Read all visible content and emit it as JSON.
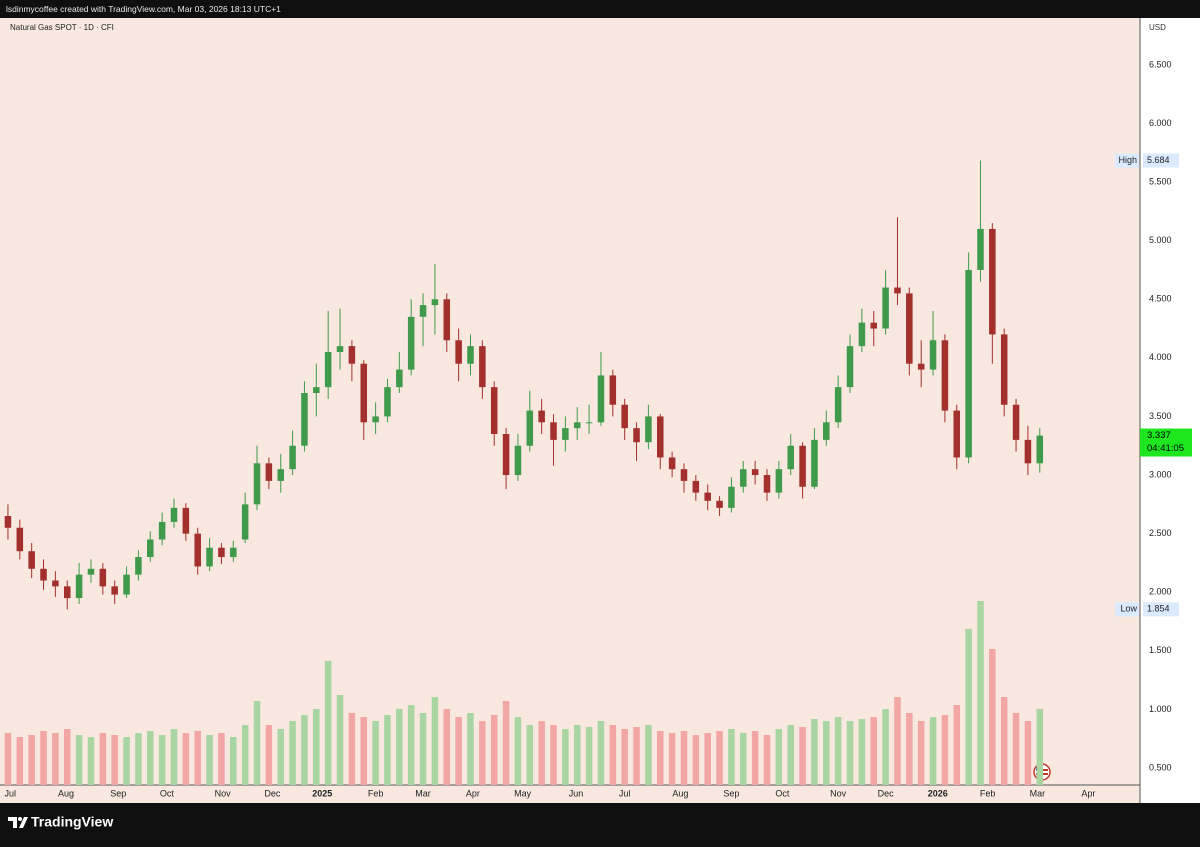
{
  "header": {
    "text": "lsdinmycoffee created with TradingView.com, Mar 03, 2026 18:13 UTC+1"
  },
  "footer": {
    "brand": "TradingView"
  },
  "chart_data": {
    "type": "candlestick",
    "title": "Natural Gas SPOT · 1D · CFI",
    "currency": "USD",
    "open": [
      2.65,
      2.55,
      2.35,
      2.2,
      2.1,
      2.05,
      1.95,
      2.15,
      2.2,
      2.05,
      1.98,
      2.15,
      2.3,
      2.45,
      2.6,
      2.72,
      2.5,
      2.22,
      2.38,
      2.3,
      2.45,
      2.75,
      3.1,
      2.95,
      3.05,
      3.25,
      3.7,
      3.75,
      4.05,
      4.1,
      3.95,
      3.45,
      3.5,
      3.75,
      3.9,
      4.35,
      4.45,
      4.5,
      4.15,
      3.95,
      4.1,
      3.75,
      3.35,
      3.0,
      3.25,
      3.55,
      3.45,
      3.3,
      3.4,
      3.45,
      3.45,
      3.85,
      3.6,
      3.4,
      3.28,
      3.5,
      3.15,
      3.05,
      2.95,
      2.85,
      2.78,
      2.72,
      2.9,
      3.05,
      3.0,
      2.85,
      3.05,
      3.25,
      2.9,
      3.3,
      3.45,
      3.75,
      4.1,
      4.3,
      4.25,
      4.6,
      4.55,
      3.95,
      3.9,
      4.15,
      3.55,
      3.15,
      4.75,
      5.1,
      4.2,
      3.6,
      3.3,
      3.1
    ],
    "high": [
      2.75,
      2.62,
      2.42,
      2.28,
      2.18,
      2.1,
      2.25,
      2.28,
      2.25,
      2.1,
      2.22,
      2.36,
      2.52,
      2.68,
      2.8,
      2.76,
      2.55,
      2.46,
      2.42,
      2.44,
      2.85,
      3.25,
      3.15,
      3.18,
      3.38,
      3.8,
      3.95,
      4.4,
      4.42,
      4.15,
      3.98,
      3.62,
      3.82,
      4.05,
      4.5,
      4.55,
      4.8,
      4.55,
      4.25,
      4.2,
      4.15,
      3.8,
      3.4,
      3.35,
      3.72,
      3.65,
      3.52,
      3.5,
      3.58,
      3.6,
      4.05,
      3.9,
      3.65,
      3.45,
      3.6,
      3.52,
      3.2,
      3.1,
      3.0,
      2.92,
      2.82,
      2.98,
      3.12,
      3.12,
      3.05,
      3.12,
      3.35,
      3.28,
      3.4,
      3.55,
      3.85,
      4.2,
      4.42,
      4.4,
      4.75,
      5.2,
      4.6,
      4.15,
      4.4,
      4.2,
      3.6,
      4.9,
      5.684,
      5.15,
      4.25,
      3.65,
      3.42,
      3.4
    ],
    "low": [
      2.45,
      2.28,
      2.12,
      2.02,
      1.96,
      1.854,
      1.9,
      2.08,
      1.98,
      1.9,
      1.95,
      2.1,
      2.26,
      2.4,
      2.55,
      2.44,
      2.15,
      2.18,
      2.24,
      2.26,
      2.42,
      2.7,
      2.88,
      2.85,
      3.0,
      3.2,
      3.5,
      3.65,
      3.9,
      3.8,
      3.3,
      3.35,
      3.45,
      3.7,
      3.85,
      4.1,
      4.2,
      4.05,
      3.8,
      3.85,
      3.65,
      3.25,
      2.88,
      2.95,
      3.2,
      3.35,
      3.08,
      3.2,
      3.3,
      3.35,
      3.42,
      3.5,
      3.3,
      3.12,
      3.22,
      3.05,
      2.98,
      2.85,
      2.78,
      2.7,
      2.65,
      2.68,
      2.85,
      2.92,
      2.78,
      2.8,
      3.0,
      2.8,
      2.88,
      3.25,
      3.4,
      3.7,
      4.05,
      4.1,
      4.2,
      4.45,
      3.85,
      3.75,
      3.85,
      3.45,
      3.05,
      3.1,
      4.65,
      3.95,
      3.5,
      3.2,
      3.0,
      3.02
    ],
    "close": [
      2.55,
      2.35,
      2.2,
      2.1,
      2.05,
      1.95,
      2.15,
      2.2,
      2.05,
      1.98,
      2.15,
      2.3,
      2.45,
      2.6,
      2.72,
      2.5,
      2.22,
      2.38,
      2.3,
      2.38,
      2.75,
      3.1,
      2.95,
      3.05,
      3.25,
      3.7,
      3.75,
      4.05,
      4.1,
      3.95,
      3.45,
      3.5,
      3.75,
      3.9,
      4.35,
      4.45,
      4.5,
      4.15,
      3.95,
      4.1,
      3.75,
      3.35,
      3.0,
      3.25,
      3.55,
      3.45,
      3.3,
      3.4,
      3.45,
      3.45,
      3.85,
      3.6,
      3.4,
      3.28,
      3.5,
      3.15,
      3.05,
      2.95,
      2.85,
      2.78,
      2.72,
      2.9,
      3.05,
      3.0,
      2.85,
      3.05,
      3.25,
      2.9,
      3.3,
      3.45,
      3.75,
      4.1,
      4.3,
      4.25,
      4.6,
      4.55,
      3.95,
      3.9,
      4.15,
      3.55,
      3.15,
      4.75,
      5.1,
      4.2,
      3.6,
      3.3,
      3.1,
      3.337
    ],
    "volume": [
      26,
      24,
      25,
      27,
      26,
      28,
      25,
      24,
      26,
      25,
      24,
      26,
      27,
      25,
      28,
      26,
      27,
      25,
      26,
      24,
      30,
      42,
      30,
      28,
      32,
      35,
      38,
      62,
      45,
      36,
      34,
      32,
      35,
      38,
      40,
      36,
      44,
      38,
      34,
      36,
      32,
      35,
      42,
      34,
      30,
      32,
      30,
      28,
      30,
      29,
      32,
      30,
      28,
      29,
      30,
      27,
      26,
      27,
      25,
      26,
      27,
      28,
      26,
      27,
      25,
      28,
      30,
      29,
      33,
      32,
      34,
      32,
      33,
      34,
      38,
      44,
      36,
      32,
      34,
      35,
      40,
      78,
      92,
      68,
      44,
      36,
      32,
      38
    ],
    "volume_lim": [
      0,
      100
    ],
    "ylim": [
      0.355,
      6.9
    ],
    "yticks": [
      {
        "value": 0.5,
        "label": "0.500"
      },
      {
        "value": 1,
        "label": "1.000"
      },
      {
        "value": 1.5,
        "label": "1.500"
      },
      {
        "value": 2,
        "label": "2.000"
      },
      {
        "value": 2.5,
        "label": "2.500"
      },
      {
        "value": 3,
        "label": "3.000"
      },
      {
        "value": 3.5,
        "label": "3.500"
      },
      {
        "value": 4,
        "label": "4.000"
      },
      {
        "value": 4.5,
        "label": "4.500"
      },
      {
        "value": 5,
        "label": "5.000"
      },
      {
        "value": 5.5,
        "label": "5.500"
      },
      {
        "value": 6,
        "label": "6.000"
      },
      {
        "value": 6.5,
        "label": "6.500"
      }
    ],
    "xlim": [
      -0.67,
      95.45
    ],
    "xticks": [
      {
        "value": 0.2,
        "label": "Jul"
      },
      {
        "value": 4.9,
        "label": "Aug"
      },
      {
        "value": 9.3,
        "label": "Sep"
      },
      {
        "value": 13.4,
        "label": "Oct"
      },
      {
        "value": 18.1,
        "label": "Nov"
      },
      {
        "value": 22.3,
        "label": "Dec"
      },
      {
        "value": 26.5,
        "label": "2025"
      },
      {
        "value": 31.0,
        "label": "Feb"
      },
      {
        "value": 35.0,
        "label": "Mar"
      },
      {
        "value": 39.2,
        "label": "Apr"
      },
      {
        "value": 43.4,
        "label": "May"
      },
      {
        "value": 47.9,
        "label": "Jun"
      },
      {
        "value": 52.0,
        "label": "Jul"
      },
      {
        "value": 56.7,
        "label": "Aug"
      },
      {
        "value": 61.0,
        "label": "Sep"
      },
      {
        "value": 65.3,
        "label": "Oct"
      },
      {
        "value": 70.0,
        "label": "Nov"
      },
      {
        "value": 74.0,
        "label": "Dec"
      },
      {
        "value": 78.4,
        "label": "2026"
      },
      {
        "value": 82.6,
        "label": "Feb"
      },
      {
        "value": 86.8,
        "label": "Mar"
      },
      {
        "value": 91.1,
        "label": "Apr"
      }
    ],
    "high_marker": {
      "label": "High",
      "value": 5.684
    },
    "low_marker": {
      "label": "Low",
      "value": 1.854
    },
    "last_price": {
      "value": 3.337,
      "countdown": "04:41:05"
    },
    "up_color": "#3f9a4c",
    "down_color": "#a3302c",
    "up_volume_color": "#a8d5a2",
    "down_volume_color": "#f2a7a4",
    "background": "#f8e8df"
  }
}
